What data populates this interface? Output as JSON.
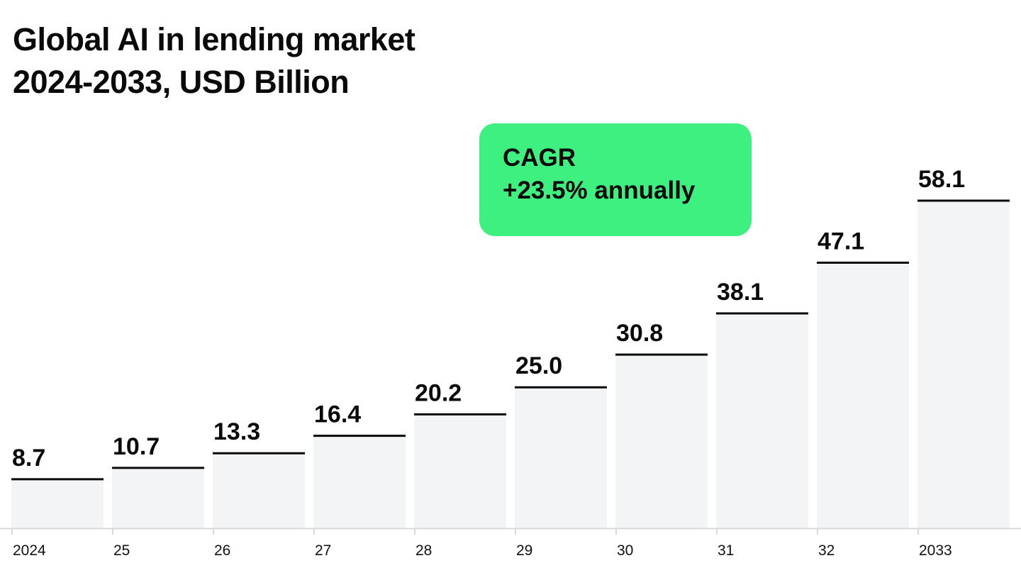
{
  "title_line1": "Global AI in lending market",
  "title_line2": "2024-2033, USD Billion",
  "callout": {
    "line1": "CAGR",
    "line2": "+23.5% annually",
    "color": "#3df07f"
  },
  "colors": {
    "bar_fill": "#f3f4f6",
    "bar_top": "#0a0a0a",
    "axis": "#d9d9d9"
  },
  "chart_data": {
    "type": "bar",
    "title": "Global AI in lending market 2024-2033, USD Billion",
    "categories": [
      "2024",
      "25",
      "26",
      "27",
      "28",
      "29",
      "30",
      "31",
      "32",
      "2033"
    ],
    "values": [
      8.7,
      10.7,
      13.3,
      16.4,
      20.2,
      25.0,
      30.8,
      38.1,
      47.1,
      58.1
    ],
    "value_labels": [
      "8.7",
      "10.7",
      "13.3",
      "16.4",
      "20.2",
      "25.0",
      "30.8",
      "38.1",
      "47.1",
      "58.1"
    ],
    "ylim": [
      0,
      58.1
    ],
    "grid": false,
    "legend": "none"
  }
}
